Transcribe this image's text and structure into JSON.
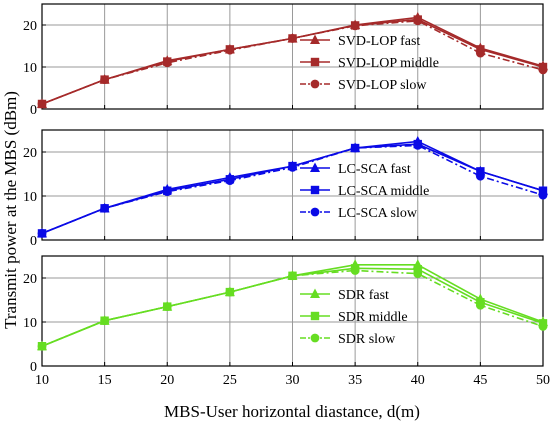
{
  "chart_data": [
    {
      "type": "line",
      "x": [
        10,
        15,
        20,
        25,
        30,
        35,
        40,
        45,
        50
      ],
      "xlim": [
        10,
        50
      ],
      "ylim": [
        0,
        25
      ],
      "yticks": [
        0,
        10,
        20
      ],
      "grid": true,
      "legend_position": "right",
      "color": "#a52a2a",
      "series": [
        {
          "name": "SVD-LOP fast",
          "marker": "triangle",
          "dash": "solid",
          "values": [
            1.2,
            7.0,
            11.5,
            14.2,
            16.8,
            20.0,
            21.8,
            14.5,
            10.2
          ]
        },
        {
          "name": "SVD-LOP middle",
          "marker": "square",
          "dash": "solid",
          "values": [
            1.2,
            7.0,
            11.3,
            14.2,
            16.8,
            19.9,
            21.3,
            14.2,
            10.0
          ]
        },
        {
          "name": "SVD-LOP slow",
          "marker": "circle",
          "dash": "dashdot",
          "values": [
            1.2,
            7.0,
            11.0,
            14.0,
            16.8,
            19.8,
            21.0,
            13.3,
            9.3
          ]
        }
      ]
    },
    {
      "type": "line",
      "x": [
        10,
        15,
        20,
        25,
        30,
        35,
        40,
        45,
        50
      ],
      "xlim": [
        10,
        50
      ],
      "ylim": [
        0,
        25
      ],
      "yticks": [
        0,
        10,
        20
      ],
      "grid": true,
      "legend_position": "right",
      "color": "#0a0ae6",
      "series": [
        {
          "name": "LC-SCA fast",
          "marker": "triangle",
          "dash": "solid",
          "values": [
            1.5,
            7.2,
            11.5,
            14.2,
            16.8,
            20.9,
            22.4,
            15.6,
            11.2
          ]
        },
        {
          "name": "LC-SCA middle",
          "marker": "square",
          "dash": "solid",
          "values": [
            1.5,
            7.2,
            11.2,
            13.8,
            16.8,
            20.9,
            21.8,
            15.6,
            11.2
          ]
        },
        {
          "name": "LC-SCA slow",
          "marker": "circle",
          "dash": "dashdot",
          "values": [
            1.5,
            7.2,
            11.0,
            13.5,
            16.5,
            20.9,
            21.5,
            14.5,
            10.2
          ]
        }
      ]
    },
    {
      "type": "line",
      "x": [
        10,
        15,
        20,
        25,
        30,
        35,
        40,
        45,
        50
      ],
      "xlim": [
        10,
        50
      ],
      "ylim": [
        0,
        25
      ],
      "yticks": [
        0,
        10,
        20
      ],
      "grid": true,
      "legend_position": "right",
      "color": "#66dd22",
      "series": [
        {
          "name": "SDR fast",
          "marker": "triangle",
          "dash": "solid",
          "values": [
            4.5,
            10.3,
            13.5,
            16.8,
            20.5,
            23.0,
            23.0,
            15.2,
            10.0
          ]
        },
        {
          "name": "SDR middle",
          "marker": "square",
          "dash": "solid",
          "values": [
            4.5,
            10.3,
            13.5,
            16.8,
            20.5,
            22.2,
            22.0,
            14.5,
            9.7
          ]
        },
        {
          "name": "SDR slow",
          "marker": "circle",
          "dash": "dashdot",
          "values": [
            4.5,
            10.3,
            13.5,
            16.8,
            20.5,
            21.7,
            21.0,
            13.8,
            9.0
          ]
        }
      ]
    }
  ],
  "axes": {
    "xlabel": "MBS-User horizontal diastance, d(m)",
    "ylabel": "Transmit power at the MBS (dBm)",
    "xticks": [
      10,
      15,
      20,
      25,
      30,
      35,
      40,
      45,
      50
    ]
  }
}
